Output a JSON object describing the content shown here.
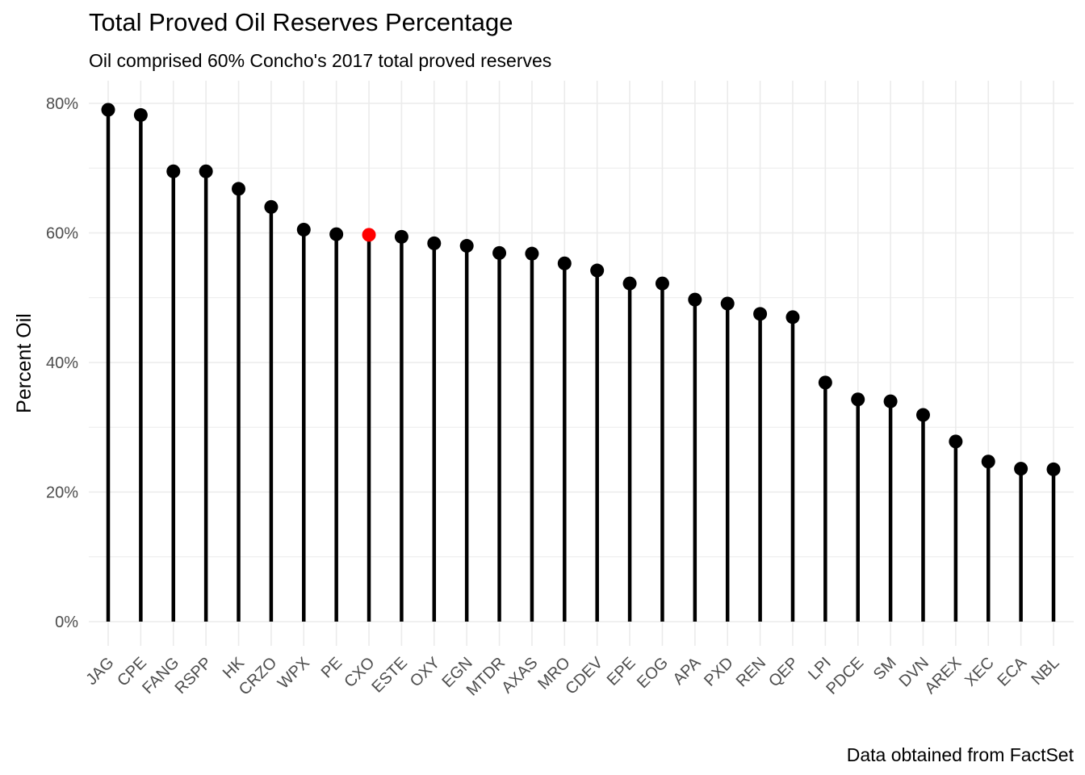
{
  "chart_data": {
    "type": "lollipop",
    "title": "Total Proved Oil Reserves Percentage",
    "subtitle": "Oil comprised 60% Concho's 2017 total proved reserves",
    "caption": "Data obtained from FactSet",
    "xlabel": "",
    "ylabel": "Percent Oil",
    "ylim": [
      0,
      0.8
    ],
    "y_ticks": [
      0,
      0.2,
      0.4,
      0.6,
      0.8
    ],
    "y_tick_labels": [
      "0%",
      "20%",
      "40%",
      "60%",
      "80%"
    ],
    "grid": true,
    "legend": "none",
    "highlight": "CXO",
    "colors": {
      "default": "#000000",
      "highlight": "#ff0000",
      "grid": "#ebebeb"
    },
    "categories": [
      "JAG",
      "CPE",
      "FANG",
      "RSPP",
      "HK",
      "CRZO",
      "WPX",
      "PE",
      "CXO",
      "ESTE",
      "OXY",
      "EGN",
      "MTDR",
      "AXAS",
      "MRO",
      "CDEV",
      "EPE",
      "EOG",
      "APA",
      "PXD",
      "REN",
      "QEP",
      "LPI",
      "PDCE",
      "SM",
      "DVN",
      "AREX",
      "XEC",
      "ECA",
      "NBL"
    ],
    "values": [
      0.79,
      0.782,
      0.695,
      0.695,
      0.668,
      0.64,
      0.605,
      0.598,
      0.597,
      0.594,
      0.584,
      0.58,
      0.569,
      0.568,
      0.553,
      0.542,
      0.522,
      0.522,
      0.497,
      0.491,
      0.475,
      0.47,
      0.369,
      0.343,
      0.34,
      0.319,
      0.278,
      0.247,
      0.236,
      0.235
    ]
  }
}
